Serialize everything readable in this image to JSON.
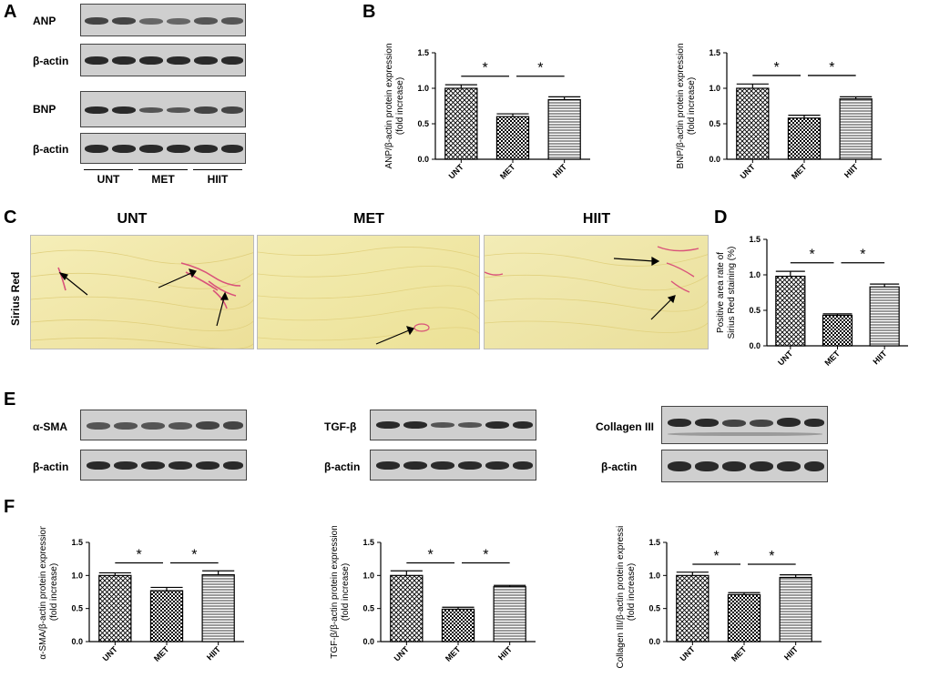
{
  "panel_letters": {
    "A": "A",
    "B": "B",
    "C": "C",
    "D": "D",
    "E": "E",
    "F": "F"
  },
  "blots_A": {
    "rows": [
      {
        "label": "ANP"
      },
      {
        "label": "β-actin"
      },
      {
        "label": "BNP"
      },
      {
        "label": "β-actin"
      }
    ],
    "groups": [
      "UNT",
      "MET",
      "HIIT"
    ]
  },
  "blots_E": [
    {
      "protein": "α-SMA",
      "control": "β-actin"
    },
    {
      "protein": "TGF-β",
      "control": "β-actin"
    },
    {
      "protein": "Collagen III",
      "control": "β-actin"
    }
  ],
  "histology": {
    "stain_label": "Sirius Red",
    "titles": [
      "UNT",
      "MET",
      "HIIT"
    ]
  },
  "colors": {
    "bar_edge": "#000000",
    "histo_bg": "#f3e9a8",
    "fibrosis": "#d9527a"
  },
  "chart_data": [
    {
      "id": "anp",
      "type": "bar",
      "categories": [
        "UNT",
        "MET",
        "HIIT"
      ],
      "values": [
        1.0,
        0.6,
        0.84
      ],
      "errors": [
        0.05,
        0.04,
        0.04
      ],
      "ylabel_line1": "ANP/β-actin protein expression",
      "ylabel_line2": "(fold increase)",
      "ylim": [
        0,
        1.5
      ],
      "yticks": [
        "0.0",
        "0.5",
        "1.0",
        "1.5"
      ],
      "sig": [
        "*",
        "*"
      ]
    },
    {
      "id": "bnp",
      "type": "bar",
      "categories": [
        "UNT",
        "MET",
        "HIIT"
      ],
      "values": [
        1.0,
        0.58,
        0.85
      ],
      "errors": [
        0.06,
        0.04,
        0.03
      ],
      "ylabel_line1": "BNP/β-actin protein expression",
      "ylabel_line2": "(fold increase)",
      "ylim": [
        0,
        1.5
      ],
      "yticks": [
        "0.0",
        "0.5",
        "1.0",
        "1.5"
      ],
      "sig": [
        "*",
        "*"
      ]
    },
    {
      "id": "sirius",
      "type": "bar",
      "categories": [
        "UNT",
        "MET",
        "HIIT"
      ],
      "values": [
        0.98,
        0.43,
        0.83
      ],
      "errors": [
        0.07,
        0.02,
        0.04
      ],
      "ylabel_line1": "Positive area rate of",
      "ylabel_line2": "Sirius Red staining (%)",
      "ylim": [
        0,
        1.5
      ],
      "yticks": [
        "0.0",
        "0.5",
        "1.0",
        "1.5"
      ],
      "sig": [
        "*",
        "*"
      ]
    },
    {
      "id": "asma",
      "type": "bar",
      "categories": [
        "UNT",
        "MET",
        "HIIT"
      ],
      "values": [
        1.0,
        0.77,
        1.01
      ],
      "errors": [
        0.04,
        0.05,
        0.06
      ],
      "ylabel_line1": "α-SMA/β-actin protein expression",
      "ylabel_line2": "(fold increase)",
      "ylim": [
        0,
        1.5
      ],
      "yticks": [
        "0.0",
        "0.5",
        "1.0",
        "1.5"
      ],
      "sig": [
        "*",
        "*"
      ]
    },
    {
      "id": "tgf",
      "type": "bar",
      "categories": [
        "UNT",
        "MET",
        "HIIT"
      ],
      "values": [
        1.0,
        0.49,
        0.83
      ],
      "errors": [
        0.07,
        0.03,
        0.02
      ],
      "ylabel_line1": "TGF-β/β-actin protein expression",
      "ylabel_line2": "(fold increase)",
      "ylim": [
        0,
        1.5
      ],
      "yticks": [
        "0.0",
        "0.5",
        "1.0",
        "1.5"
      ],
      "sig": [
        "*",
        "*"
      ]
    },
    {
      "id": "col3",
      "type": "bar",
      "categories": [
        "UNT",
        "MET",
        "HIIT"
      ],
      "values": [
        1.0,
        0.71,
        0.97
      ],
      "errors": [
        0.05,
        0.03,
        0.04
      ],
      "ylabel_line1": "Collagen III/β-actin protein expression",
      "ylabel_line2": "(fold increase)",
      "ylim": [
        0,
        1.5
      ],
      "yticks": [
        "0.0",
        "0.5",
        "1.0",
        "1.5"
      ],
      "sig": [
        "*",
        "*"
      ]
    }
  ]
}
